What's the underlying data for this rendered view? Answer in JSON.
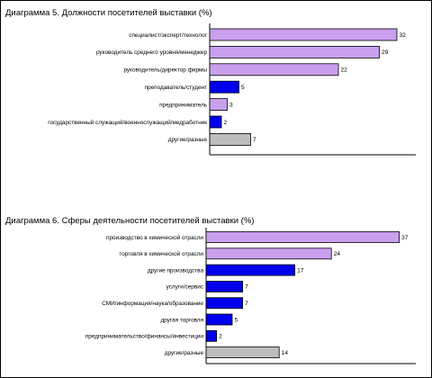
{
  "palette": {
    "purple": "#c9a0ee",
    "blue": "#0000ee",
    "grey": "#bdbdbd"
  },
  "chart_data": [
    {
      "type": "bar",
      "orientation": "horizontal",
      "title": "Диаграмма 5. Должности посетителей выставки (%)",
      "grid": false,
      "legend": "none",
      "xlim": [
        0,
        33
      ],
      "categories": [
        "специалист/эксперт/технолог",
        "руководитель среднего уровня/менеджер",
        "руководитель/директор фирмы",
        "преподаватель/студент",
        "предприниматель",
        "государственный служащий/военнослужащий/медработник",
        "другие/разные"
      ],
      "values": [
        32,
        29,
        22,
        5,
        3,
        2,
        7
      ],
      "value_labels": [
        "32",
        "29",
        "22",
        "5",
        "3",
        "2",
        "7"
      ],
      "bar_colors": [
        "purple",
        "purple",
        "purple",
        "blue",
        "purple",
        "blue",
        "grey"
      ]
    },
    {
      "type": "bar",
      "orientation": "horizontal",
      "title": "Диаграмма 6. Сферы деятельности посетителей выставки (%)",
      "grid": false,
      "legend": "none",
      "xlim": [
        0,
        38
      ],
      "categories": [
        "производство в химической отрасли",
        "торговля в химической отрасли",
        "другие производства",
        "услуги/сервис",
        "СМИ/информация/наука/образование",
        "другая торговля",
        "предпринимательство/финансы/инвестиции",
        "другие/разные"
      ],
      "values": [
        37,
        24,
        17,
        7,
        7,
        5,
        2,
        14
      ],
      "value_labels": [
        "37",
        "24",
        "17",
        "7",
        "7",
        "5",
        "2",
        "14"
      ],
      "bar_colors": [
        "purple",
        "purple",
        "blue",
        "blue",
        "blue",
        "blue",
        "blue",
        "grey"
      ]
    }
  ]
}
